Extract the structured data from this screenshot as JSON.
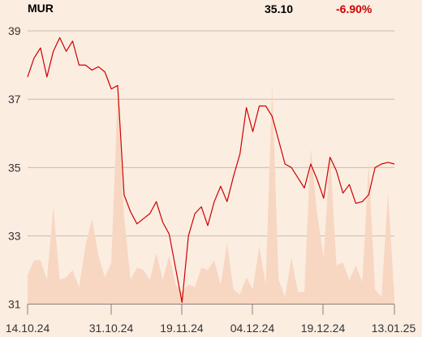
{
  "header": {
    "ticker": "MUR",
    "price": "35.10",
    "change": "-6.90%"
  },
  "colors": {
    "background": "#fcede1",
    "price_line": "#cc0000",
    "volume_area": "#f7d7c2",
    "change_negative": "#cc0000",
    "grid": "#b8aca4"
  },
  "chart_data": {
    "type": "line",
    "x_ticks": [
      "14.10.24",
      "31.10.24",
      "19.11.24",
      "04.12.24",
      "19.12.24",
      "13.01.25"
    ],
    "y_ticks": [
      31,
      33,
      35,
      37,
      39
    ],
    "ylim": [
      31,
      39.4
    ],
    "grid": true,
    "series": [
      {
        "type": "line",
        "values": [
          37.65,
          38.2,
          38.5,
          37.65,
          38.4,
          38.8,
          38.4,
          38.7,
          38.0,
          38.0,
          37.85,
          37.95,
          37.8,
          37.3,
          37.4,
          34.2,
          33.7,
          33.35,
          33.5,
          33.65,
          34.0,
          33.4,
          33.05,
          32.05,
          31.05,
          33.0,
          33.65,
          33.85,
          33.3,
          34.0,
          34.45,
          34.0,
          34.75,
          35.4,
          36.75,
          36.05,
          36.8,
          36.8,
          36.5,
          35.8,
          35.1,
          35.0,
          34.7,
          34.4,
          35.1,
          34.65,
          34.1,
          35.3,
          34.9,
          34.25,
          34.5,
          33.95,
          34.0,
          34.2,
          35.0,
          35.1,
          35.15,
          35.1
        ]
      },
      {
        "type": "area",
        "values": [
          0.12,
          0.18,
          0.18,
          0.1,
          0.4,
          0.1,
          0.11,
          0.14,
          0.07,
          0.24,
          0.35,
          0.2,
          0.11,
          0.17,
          0.86,
          0.36,
          0.1,
          0.15,
          0.14,
          0.1,
          0.21,
          0.1,
          0.2,
          0.08,
          0.05,
          0.08,
          0.07,
          0.15,
          0.14,
          0.18,
          0.08,
          0.25,
          0.06,
          0.04,
          0.11,
          0.06,
          0.24,
          0.08,
          0.9,
          0.1,
          0.03,
          0.19,
          0.05,
          0.05,
          0.64,
          0.37,
          0.19,
          0.62,
          0.16,
          0.17,
          0.1,
          0.16,
          0.09,
          0.58,
          0.06,
          0.03,
          0.46,
          0.03
        ]
      }
    ]
  }
}
